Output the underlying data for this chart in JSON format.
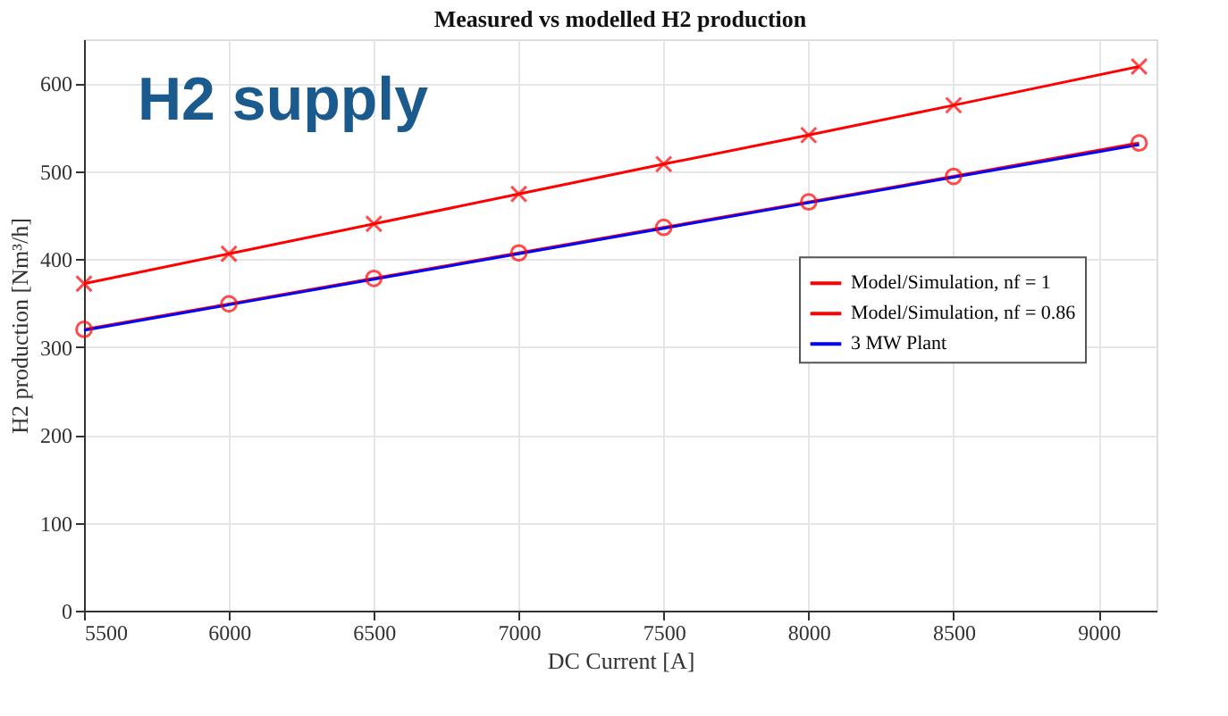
{
  "chart_data": {
    "type": "line",
    "title": "Measured vs modelled H2 production",
    "xlabel": "DC Current [A]",
    "ylabel": "H2 production [Nm³/h]",
    "x": [
      5500,
      6000,
      6500,
      7000,
      7500,
      8000,
      8500,
      9140
    ],
    "series": [
      {
        "name": "Model/Simulation, nf = 1",
        "color": "#ff0000",
        "marker": "cross",
        "values": [
          372,
          406,
          440,
          474,
          508,
          541,
          575,
          619
        ]
      },
      {
        "name": "Model/Simulation, nf = 0.86",
        "color": "#ff0000",
        "marker": "circle",
        "values": [
          320,
          349,
          378,
          407,
          436,
          465,
          494,
          532
        ]
      },
      {
        "name": "3 MW Plant",
        "color": "#0000ff",
        "marker": "none",
        "values": [
          319,
          348,
          377,
          406,
          435,
          464,
          493,
          530
        ]
      }
    ],
    "xlim": [
      5500,
      9200
    ],
    "xticks": [
      5500,
      6000,
      6500,
      7000,
      7500,
      8000,
      8500,
      9000
    ],
    "ylim": [
      0,
      650
    ],
    "yticks": [
      0,
      100,
      200,
      300,
      400,
      500,
      600
    ],
    "grid": true,
    "legend": "right",
    "line_style": "solid",
    "annotations": [
      "H2 supply"
    ]
  }
}
